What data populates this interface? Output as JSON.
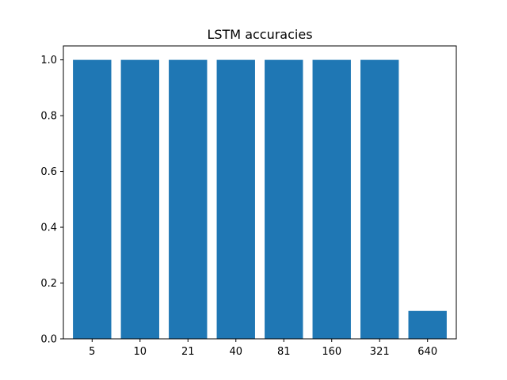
{
  "chart_data": {
    "type": "bar",
    "title": "LSTM accuracies",
    "xlabel": "",
    "ylabel": "",
    "categories": [
      "5",
      "10",
      "21",
      "40",
      "81",
      "160",
      "321",
      "640"
    ],
    "values": [
      1.0,
      1.0,
      1.0,
      1.0,
      1.0,
      1.0,
      1.0,
      0.1
    ],
    "ylim": [
      0,
      1.05
    ],
    "yticks": [
      0.0,
      0.2,
      0.4,
      0.6,
      0.8,
      1.0
    ],
    "ytick_labels": [
      "0.0",
      "0.2",
      "0.4",
      "0.6",
      "0.8",
      "1.0"
    ],
    "bar_color": "#1f77b4",
    "grid": false,
    "legend": "none"
  }
}
